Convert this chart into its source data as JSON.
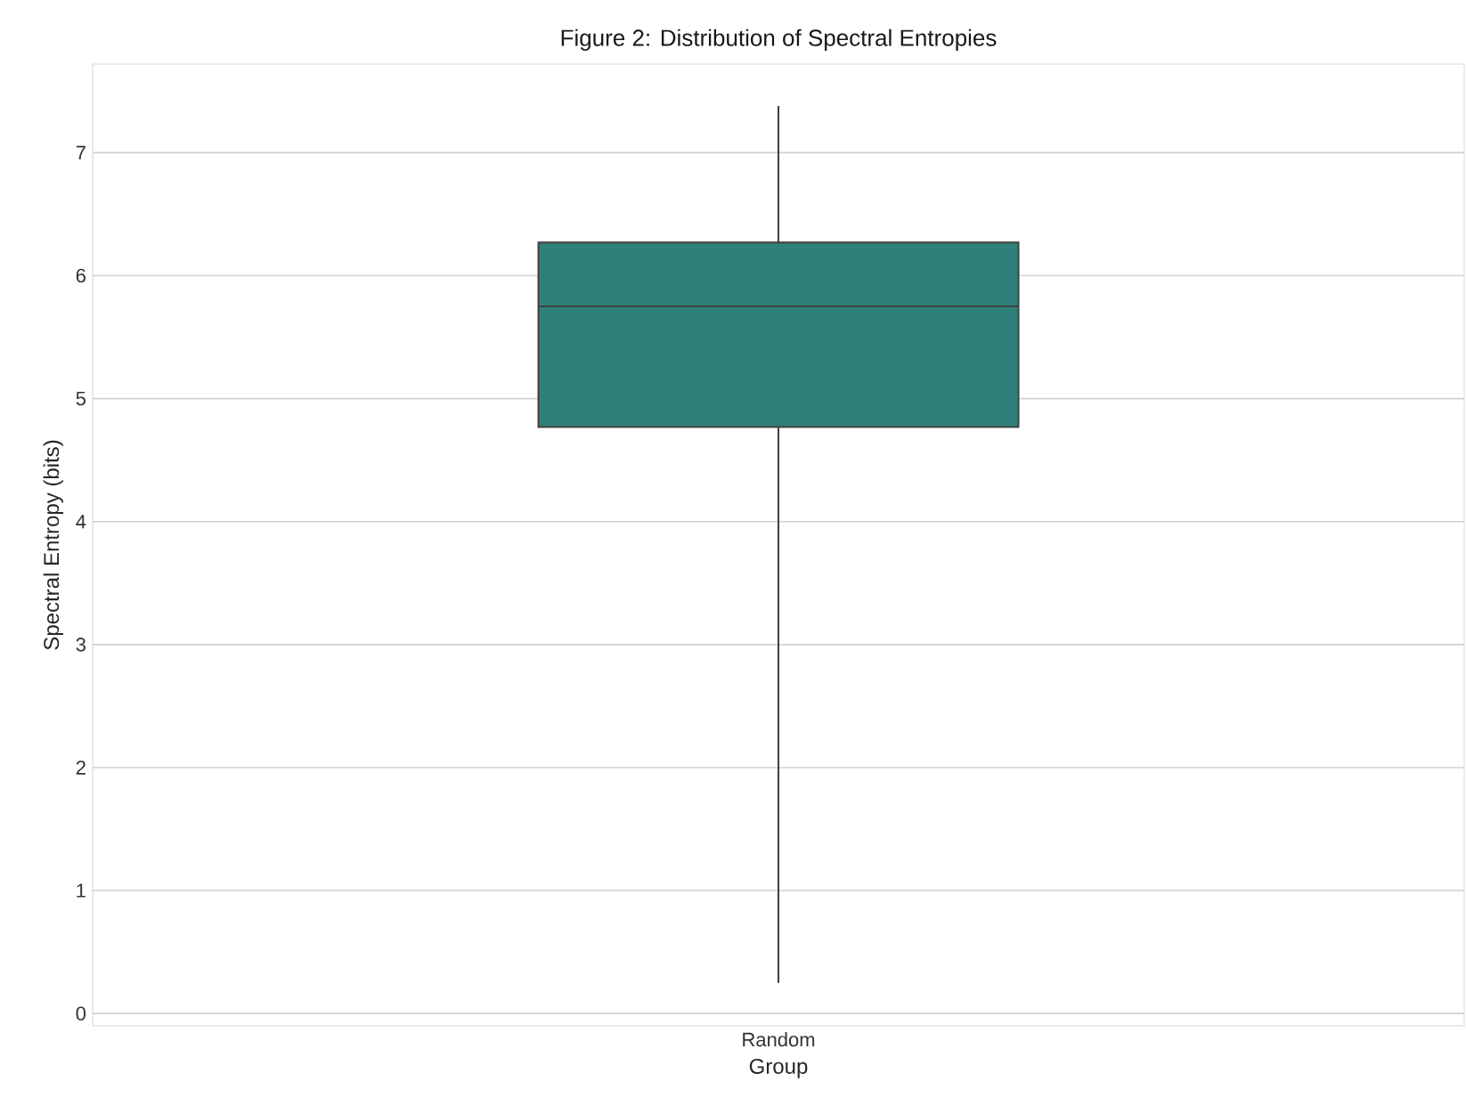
{
  "chart_data": {
    "type": "box",
    "title": "Figure 2: Distribution of Spectral Entropies",
    "xlabel": "Group",
    "ylabel": "Spectral Entropy (bits)",
    "categories": [
      "Random"
    ],
    "series": [
      {
        "color": "#2e8079",
        "boxes": [
          {
            "low": 0.25,
            "q1": 4.77,
            "median": 5.75,
            "q3": 6.27,
            "high": 7.38
          }
        ]
      }
    ],
    "ylim": [
      -0.1,
      7.72
    ],
    "yticks": [
      0,
      1,
      2,
      3,
      4,
      5,
      6,
      7
    ],
    "grid": "y"
  }
}
